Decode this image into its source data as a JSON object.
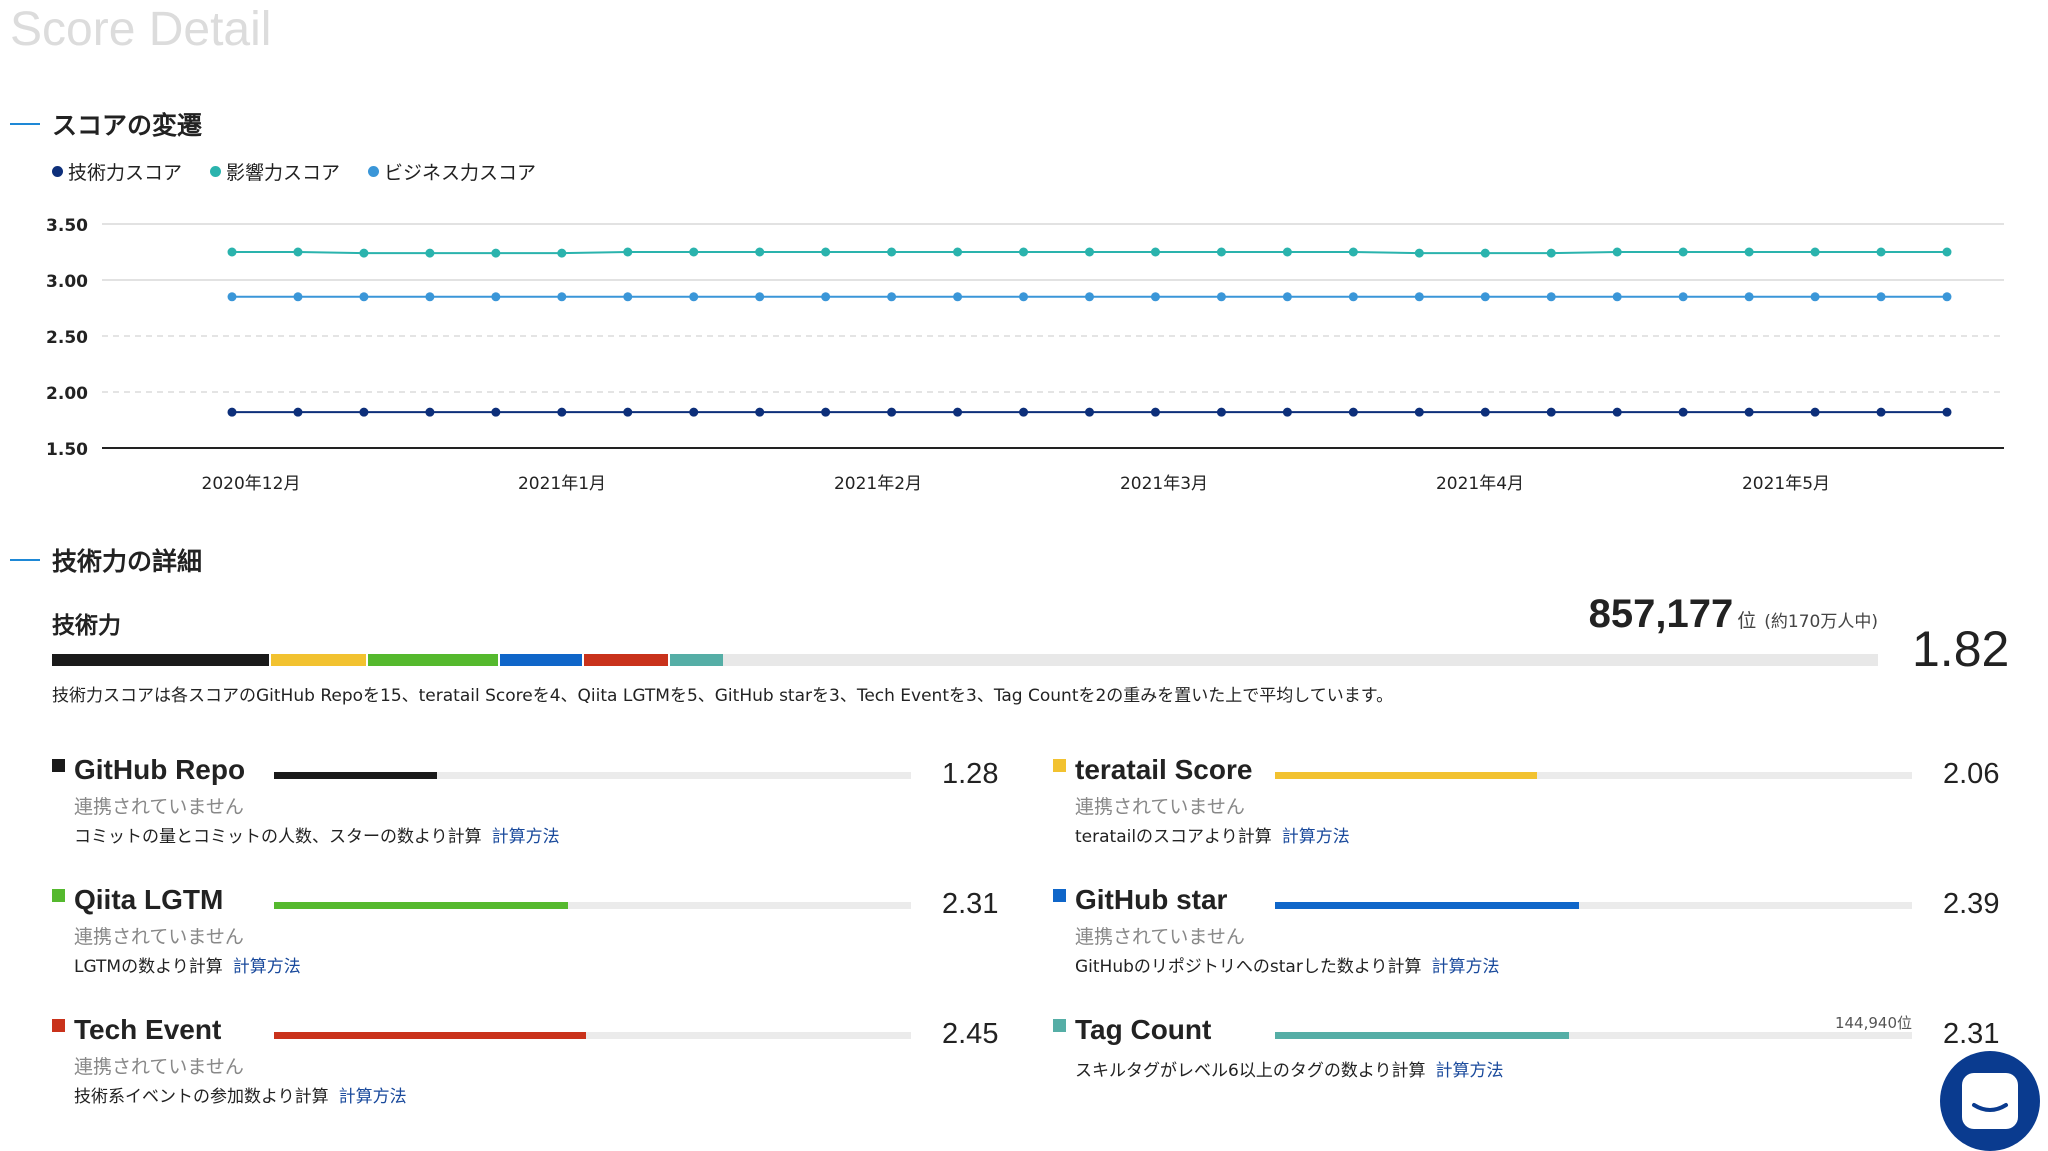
{
  "page": {
    "title": "Score Detail"
  },
  "sections": {
    "transition": "スコアの変遷",
    "detail": "技術力の詳細"
  },
  "legend": [
    {
      "label": "技術力スコア",
      "color": "#0d2f7a"
    },
    {
      "label": "影響力スコア",
      "color": "#2ab3ad"
    },
    {
      "label": "ビジネス力スコア",
      "color": "#3a96d8"
    }
  ],
  "chart_data": {
    "type": "line",
    "y_ticks": [
      "3.50",
      "3.00",
      "2.50",
      "2.00",
      "1.50"
    ],
    "ylim": [
      1.5,
      3.5
    ],
    "x_ticks": [
      "2020年12月",
      "2021年1月",
      "2021年2月",
      "2021年3月",
      "2021年4月",
      "2021年5月"
    ],
    "points": 27,
    "series": [
      {
        "name": "技術力スコア",
        "color": "#0d2f7a",
        "values": [
          1.82,
          1.82,
          1.82,
          1.82,
          1.82,
          1.82,
          1.82,
          1.82,
          1.82,
          1.82,
          1.82,
          1.82,
          1.82,
          1.82,
          1.82,
          1.82,
          1.82,
          1.82,
          1.82,
          1.82,
          1.82,
          1.82,
          1.82,
          1.82,
          1.82,
          1.82,
          1.82
        ]
      },
      {
        "name": "影響力スコア",
        "color": "#2ab3ad",
        "values": [
          3.25,
          3.25,
          3.24,
          3.24,
          3.24,
          3.24,
          3.25,
          3.25,
          3.25,
          3.25,
          3.25,
          3.25,
          3.25,
          3.25,
          3.25,
          3.25,
          3.25,
          3.25,
          3.24,
          3.24,
          3.24,
          3.25,
          3.25,
          3.25,
          3.25,
          3.25,
          3.25
        ]
      },
      {
        "name": "ビジネス力スコア",
        "color": "#3a96d8",
        "values": [
          2.85,
          2.85,
          2.85,
          2.85,
          2.85,
          2.85,
          2.85,
          2.85,
          2.85,
          2.85,
          2.85,
          2.85,
          2.85,
          2.85,
          2.85,
          2.85,
          2.85,
          2.85,
          2.85,
          2.85,
          2.85,
          2.85,
          2.85,
          2.85,
          2.85,
          2.85,
          2.85
        ]
      }
    ]
  },
  "tech": {
    "label": "技術力",
    "rank": "857,177",
    "rank_suffix": "位",
    "rank_note": "(約170万人中)",
    "score": "1.82",
    "description": "技術力スコアは各スコアのGitHub Repoを15、teratail Scoreを4、Qiita LGTMを5、GitHub starを3、Tech Eventを3、Tag Countを2の重みを置いた上で平均しています。",
    "stacked_fractions": [
      0.119,
      0.052,
      0.071,
      0.045,
      0.046,
      0.029
    ]
  },
  "metrics": [
    {
      "name": "GitHub Repo",
      "color": "#1a1a1a",
      "score": "1.28",
      "fill": 0.256,
      "status": "連携されていません",
      "calc": "コミットの量とコミットの人数、スターの数より計算",
      "link": "計算方法",
      "rank": ""
    },
    {
      "name": "teratail Score",
      "color": "#f2c230",
      "score": "2.06",
      "fill": 0.412,
      "status": "連携されていません",
      "calc": "teratailのスコアより計算",
      "link": "計算方法",
      "rank": ""
    },
    {
      "name": "Qiita LGTM",
      "color": "#55b92e",
      "score": "2.31",
      "fill": 0.462,
      "status": "連携されていません",
      "calc": "LGTMの数より計算",
      "link": "計算方法",
      "rank": ""
    },
    {
      "name": "GitHub star",
      "color": "#0f66c9",
      "score": "2.39",
      "fill": 0.478,
      "status": "連携されていません",
      "calc": "GitHubのリポジトリへのstarした数より計算",
      "link": "計算方法",
      "rank": ""
    },
    {
      "name": "Tech Event",
      "color": "#c9321b",
      "score": "2.45",
      "fill": 0.49,
      "status": "連携されていません",
      "calc": "技術系イベントの参加数より計算",
      "link": "計算方法",
      "rank": ""
    },
    {
      "name": "Tag Count",
      "color": "#55aea6",
      "score": "2.31",
      "fill": 0.462,
      "status": "",
      "calc": "スキルタグがレベル6以上のタグの数より計算",
      "link": "計算方法",
      "rank": "144,940位"
    }
  ]
}
